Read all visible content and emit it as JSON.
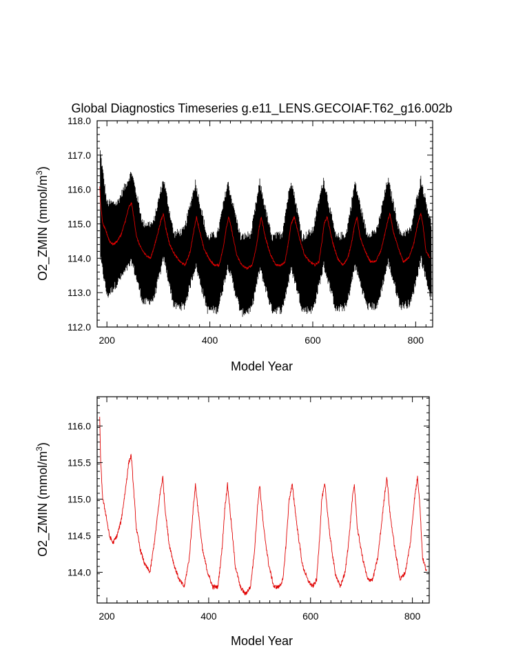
{
  "chart_data": [
    {
      "type": "line",
      "title": "Global Diagnostics Timeseries g.e11_LENS.GECOIAF.T62_g16.002b",
      "xlabel": "Model Year",
      "ylabel_main": "O2_ZMIN (mmol/m",
      "ylabel_sup": "3",
      "ylabel_close": ")",
      "xlim": [
        181,
        833
      ],
      "ylim": [
        112.0,
        118.0
      ],
      "x_ticks": [
        "200",
        "400",
        "600",
        "800"
      ],
      "y_ticks": [
        "112.0",
        "113.0",
        "114.0",
        "115.0",
        "116.0",
        "117.0",
        "118.0"
      ],
      "grid": false,
      "series": [
        {
          "style": "monthly",
          "color": "#000000",
          "x": [
            187,
            200,
            220,
            248,
            270,
            290,
            310,
            330,
            350,
            372,
            395,
            415,
            435,
            460,
            480,
            497,
            520,
            540,
            558,
            580,
            600,
            621,
            645,
            665,
            682,
            705,
            725,
            746,
            770,
            790,
            810,
            830
          ],
          "y_high": [
            117.1,
            115.6,
            115.6,
            116.5,
            115.0,
            115.0,
            116.3,
            114.7,
            114.8,
            116.2,
            114.6,
            114.7,
            116.2,
            114.6,
            114.7,
            116.2,
            114.6,
            114.7,
            116.3,
            114.6,
            114.8,
            116.3,
            114.6,
            114.7,
            116.2,
            114.7,
            114.8,
            116.3,
            114.7,
            114.8,
            116.3,
            115.0
          ],
          "y_low": [
            114.0,
            112.9,
            113.3,
            113.9,
            112.7,
            112.8,
            114.0,
            112.6,
            112.6,
            113.8,
            112.5,
            112.5,
            113.8,
            112.4,
            112.5,
            113.7,
            112.5,
            112.5,
            113.7,
            112.5,
            112.5,
            113.8,
            112.5,
            112.6,
            113.8,
            112.6,
            112.6,
            113.9,
            112.6,
            112.7,
            114.0,
            112.8
          ]
        },
        {
          "style": "annual",
          "color": "#e00000",
          "x": [
            186,
            188,
            192,
            198,
            205,
            212,
            220,
            228,
            236,
            243,
            248,
            252,
            258,
            266,
            275,
            285,
            295,
            305,
            310,
            314,
            322,
            332,
            342,
            352,
            362,
            370,
            374,
            380,
            388,
            398,
            408,
            418,
            426,
            432,
            437,
            444,
            452,
            462,
            472,
            482,
            490,
            496,
            500,
            508,
            518,
            528,
            538,
            546,
            552,
            558,
            564,
            574,
            584,
            594,
            604,
            612,
            618,
            622,
            628,
            638,
            648,
            658,
            668,
            676,
            682,
            686,
            692,
            702,
            712,
            722,
            732,
            740,
            746,
            750,
            756,
            766,
            776,
            786,
            796,
            804,
            810,
            814,
            820,
            828
          ],
          "y": [
            116.1,
            115.5,
            115.0,
            114.8,
            114.5,
            114.4,
            114.5,
            114.7,
            115.1,
            115.5,
            115.6,
            115.2,
            114.6,
            114.3,
            114.1,
            114.0,
            114.5,
            115.1,
            115.3,
            114.9,
            114.4,
            114.1,
            113.9,
            113.8,
            114.2,
            114.9,
            115.2,
            114.8,
            114.3,
            114.0,
            113.8,
            113.8,
            114.3,
            114.9,
            115.2,
            114.7,
            114.1,
            113.8,
            113.7,
            113.8,
            114.3,
            114.9,
            115.2,
            114.6,
            114.1,
            113.8,
            113.8,
            113.9,
            114.4,
            115.0,
            115.2,
            114.6,
            114.1,
            113.9,
            113.8,
            113.9,
            114.5,
            115.0,
            115.2,
            114.5,
            114.0,
            113.8,
            114.0,
            114.5,
            115.0,
            115.2,
            114.6,
            114.2,
            113.9,
            113.9,
            114.2,
            114.7,
            115.1,
            115.3,
            114.8,
            114.3,
            113.9,
            114.0,
            114.4,
            115.0,
            115.3,
            115.0,
            114.2,
            114.0
          ]
        }
      ]
    },
    {
      "type": "line",
      "title": "",
      "xlabel": "Model Year",
      "ylabel_main": "O2_ZMIN (mmol/m",
      "ylabel_sup": "3",
      "ylabel_close": ")",
      "xlim": [
        181,
        833
      ],
      "ylim": [
        113.58,
        116.4
      ],
      "x_ticks": [
        "200",
        "400",
        "600",
        "800"
      ],
      "y_ticks": [
        "114.0",
        "114.5",
        "115.0",
        "115.5",
        "116.0"
      ],
      "grid": false,
      "series": [
        {
          "style": "annual",
          "color": "#e00000",
          "x": [
            186,
            188,
            192,
            198,
            205,
            212,
            220,
            228,
            236,
            243,
            248,
            252,
            258,
            266,
            275,
            285,
            295,
            305,
            310,
            314,
            322,
            332,
            342,
            352,
            362,
            370,
            374,
            380,
            388,
            398,
            408,
            418,
            426,
            432,
            437,
            444,
            452,
            462,
            472,
            482,
            490,
            496,
            500,
            508,
            518,
            528,
            538,
            546,
            552,
            558,
            564,
            574,
            584,
            594,
            604,
            612,
            618,
            622,
            628,
            638,
            648,
            658,
            668,
            676,
            682,
            686,
            692,
            702,
            712,
            722,
            732,
            740,
            746,
            750,
            756,
            766,
            776,
            786,
            796,
            804,
            810,
            814,
            820,
            828
          ],
          "y": [
            116.1,
            115.5,
            115.0,
            114.8,
            114.5,
            114.4,
            114.5,
            114.7,
            115.1,
            115.5,
            115.6,
            115.2,
            114.6,
            114.3,
            114.1,
            114.0,
            114.5,
            115.1,
            115.3,
            114.9,
            114.4,
            114.1,
            113.9,
            113.8,
            114.2,
            114.9,
            115.2,
            114.8,
            114.3,
            114.0,
            113.8,
            113.8,
            114.3,
            114.9,
            115.2,
            114.7,
            114.1,
            113.8,
            113.7,
            113.8,
            114.3,
            114.9,
            115.2,
            114.6,
            114.1,
            113.8,
            113.8,
            113.9,
            114.4,
            115.0,
            115.2,
            114.6,
            114.1,
            113.9,
            113.8,
            113.9,
            114.5,
            115.0,
            115.2,
            114.5,
            114.0,
            113.8,
            114.0,
            114.5,
            115.0,
            115.2,
            114.6,
            114.2,
            113.9,
            113.9,
            114.2,
            114.7,
            115.1,
            115.3,
            114.8,
            114.3,
            113.9,
            114.0,
            114.4,
            115.0,
            115.3,
            115.0,
            114.2,
            114.0
          ]
        }
      ]
    }
  ]
}
